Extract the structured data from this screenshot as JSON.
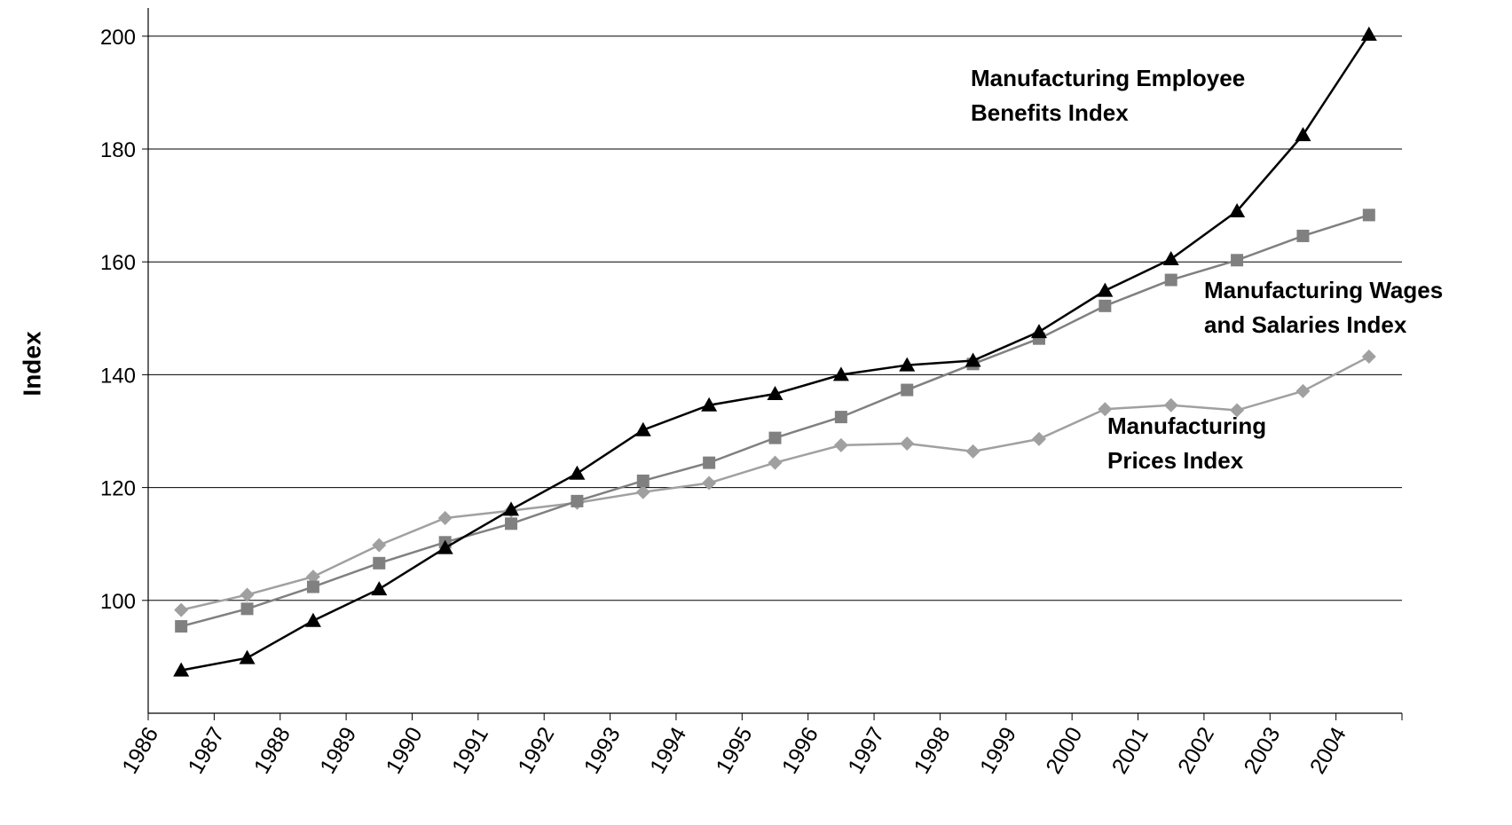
{
  "chart_data": {
    "type": "line",
    "y_label": "Index",
    "categories": [
      "1986",
      "1987",
      "1988",
      "1989",
      "1990",
      "1991",
      "1992",
      "1993",
      "1994",
      "1995",
      "1996",
      "1997",
      "1998",
      "1999",
      "2000",
      "2001",
      "2002",
      "2003",
      "2004"
    ],
    "ylim": [
      80,
      205
    ],
    "yticks": [
      100,
      120,
      140,
      160,
      180,
      200
    ],
    "grid": true,
    "series": [
      {
        "name_lines": [
          "Manufacturing Employee",
          "Benefits Index"
        ],
        "color": "#000000",
        "marker": "triangle",
        "values": [
          87.6,
          89.8,
          96.4,
          102,
          109.3,
          116.1,
          122.5,
          130.2,
          134.6,
          136.6,
          140,
          141.7,
          142.5,
          147.6,
          154.9,
          160.5,
          169,
          182.5,
          200.3
        ]
      },
      {
        "name_lines": [
          "Manufacturing Wages",
          "and Salaries Index"
        ],
        "color": "#808080",
        "marker": "square",
        "values": [
          95.4,
          98.5,
          102.4,
          106.6,
          110.3,
          113.6,
          117.6,
          121.2,
          124.4,
          128.8,
          132.5,
          137.3,
          141.9,
          146.4,
          152.2,
          156.8,
          160.3,
          164.6,
          168.3
        ]
      },
      {
        "name_lines": [
          "Manufacturing",
          "Prices Index"
        ],
        "color": "#a0a0a0",
        "marker": "diamond",
        "values": [
          98.3,
          101,
          104.2,
          109.8,
          114.6,
          115.9,
          117.3,
          119.2,
          120.8,
          124.4,
          127.5,
          127.8,
          126.4,
          128.6,
          133.9,
          134.6,
          133.7,
          137.1,
          143.2
        ]
      }
    ]
  }
}
